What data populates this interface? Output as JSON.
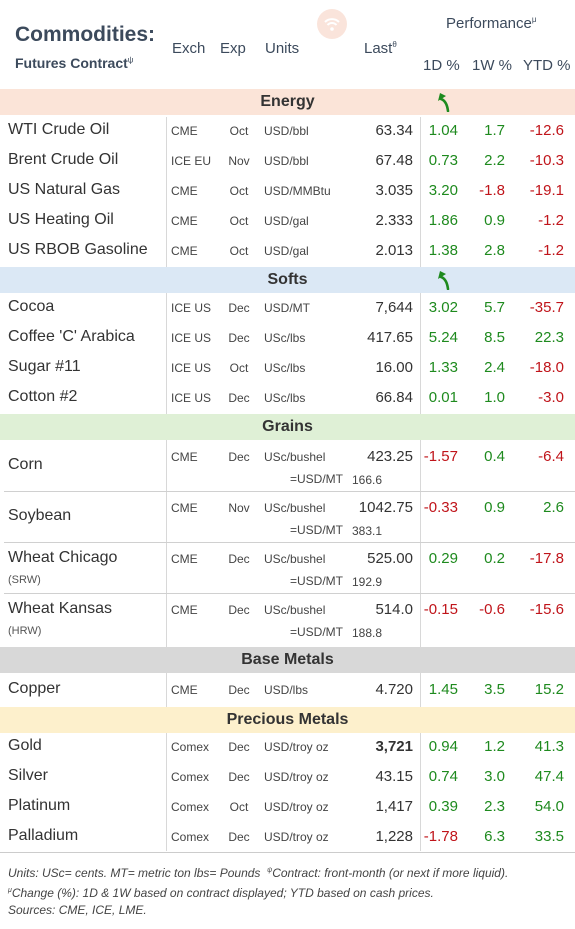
{
  "header": {
    "title": "Commodities:",
    "subtitle": "Futures Contract",
    "subtitle_mark": "ψ",
    "col_exch": "Exch",
    "col_exp": "Exp",
    "col_units": "Units",
    "col_last": "Last",
    "col_last_mark": "θ",
    "performance": "Performance",
    "performance_mark": "μ",
    "col_1d": "1D %",
    "col_1w": "1W %",
    "col_ytd": "YTD %"
  },
  "sections": {
    "energy": "Energy",
    "softs": "Softs",
    "grains": "Grains",
    "base_metals": "Base Metals",
    "precious_metals": "Precious Metals"
  },
  "energy": [
    {
      "name": "WTI Crude Oil",
      "exch": "CME",
      "exp": "Oct",
      "units": "USD/bbl",
      "last": "63.34",
      "d1": "1.04",
      "w1": "1.7",
      "ytd": "-12.6"
    },
    {
      "name": "Brent Crude Oil",
      "exch": "ICE EU",
      "exp": "Nov",
      "units": "USD/bbl",
      "last": "67.48",
      "d1": "0.73",
      "w1": "2.2",
      "ytd": "-10.3"
    },
    {
      "name": "US Natural Gas",
      "exch": "CME",
      "exp": "Oct",
      "units": "USD/MMBtu",
      "last": "3.035",
      "d1": "3.20",
      "w1": "-1.8",
      "ytd": "-19.1"
    },
    {
      "name": "US Heating Oil",
      "exch": "CME",
      "exp": "Oct",
      "units": "USD/gal",
      "last": "2.333",
      "d1": "1.86",
      "w1": "0.9",
      "ytd": "-1.2"
    },
    {
      "name": "US RBOB Gasoline",
      "exch": "CME",
      "exp": "Oct",
      "units": "USD/gal",
      "last": "2.013",
      "d1": "1.38",
      "w1": "2.8",
      "ytd": "-1.2"
    }
  ],
  "softs": [
    {
      "name": "Cocoa",
      "exch": "ICE US",
      "exp": "Dec",
      "units": "USD/MT",
      "last": "7,644",
      "d1": "3.02",
      "w1": "5.7",
      "ytd": "-35.7"
    },
    {
      "name": "Coffee 'C' Arabica",
      "exch": "ICE US",
      "exp": "Dec",
      "units": "USc/lbs",
      "last": "417.65",
      "d1": "5.24",
      "w1": "8.5",
      "ytd": "22.3"
    },
    {
      "name": "Sugar #11",
      "exch": "ICE US",
      "exp": "Oct",
      "units": "USc/lbs",
      "last": "16.00",
      "d1": "1.33",
      "w1": "2.4",
      "ytd": "-18.0"
    },
    {
      "name": "Cotton #2",
      "exch": "ICE US",
      "exp": "Dec",
      "units": "USc/lbs",
      "last": "66.84",
      "d1": "0.01",
      "w1": "1.0",
      "ytd": "-3.0"
    }
  ],
  "grains": [
    {
      "name": "Corn",
      "sub": "",
      "exch": "CME",
      "exp": "Dec",
      "units": "USc/bushel",
      "last": "423.25",
      "usdmt_label": "=USD/MT",
      "usdmt": "166.6",
      "d1": "-1.57",
      "w1": "0.4",
      "ytd": "-6.4"
    },
    {
      "name": "Soybean",
      "sub": "",
      "exch": "CME",
      "exp": "Nov",
      "units": "USc/bushel",
      "last": "1042.75",
      "usdmt_label": "=USD/MT",
      "usdmt": "383.1",
      "d1": "-0.33",
      "w1": "0.9",
      "ytd": "2.6"
    },
    {
      "name": "Wheat Chicago",
      "sub": "(SRW)",
      "exch": "CME",
      "exp": "Dec",
      "units": "USc/bushel",
      "last": "525.00",
      "usdmt_label": "=USD/MT",
      "usdmt": "192.9",
      "d1": "0.29",
      "w1": "0.2",
      "ytd": "-17.8"
    },
    {
      "name": "Wheat Kansas",
      "sub": "(HRW)",
      "exch": "CME",
      "exp": "Dec",
      "units": "USc/bushel",
      "last": "514.0",
      "usdmt_label": "=USD/MT",
      "usdmt": "188.8",
      "d1": "-0.15",
      "w1": "-0.6",
      "ytd": "-15.6"
    }
  ],
  "base_metals": [
    {
      "name": "Copper",
      "exch": "CME",
      "exp": "Dec",
      "units": "USD/lbs",
      "last": "4.720",
      "d1": "1.45",
      "w1": "3.5",
      "ytd": "15.2"
    }
  ],
  "precious_metals": [
    {
      "name": "Gold",
      "exch": "Comex",
      "exp": "Dec",
      "units": "USD/troy oz",
      "last": "3,721",
      "d1": "0.94",
      "w1": "1.2",
      "ytd": "41.3",
      "last_bold": true
    },
    {
      "name": "Silver",
      "exch": "Comex",
      "exp": "Dec",
      "units": "USD/troy oz",
      "last": "43.15",
      "d1": "0.74",
      "w1": "3.0",
      "ytd": "47.4"
    },
    {
      "name": "Platinum",
      "exch": "Comex",
      "exp": "Oct",
      "units": "USD/troy oz",
      "last": "1,417",
      "d1": "0.39",
      "w1": "2.3",
      "ytd": "54.0"
    },
    {
      "name": "Palladium",
      "exch": "Comex",
      "exp": "Dec",
      "units": "USD/troy oz",
      "last": "1,228",
      "d1": "-1.78",
      "w1": "6.3",
      "ytd": "33.5"
    }
  ],
  "footnotes": {
    "line1": "Units: USc= cents.   MT= metric ton    lbs= Pounds",
    "line1_mark": "ψ",
    "line1_tail": "Contract: front-month (or next if more liquid).",
    "line2_mark": "μ",
    "line2": "Change (%): 1D & 1W based on contract displayed; YTD based on cash prices.",
    "line3": "Sources: CME, ICE, LME."
  },
  "colors": {
    "positive": "#1e8a1e",
    "negative": "#c0141a",
    "energy_band": "#fbe4d8",
    "softs_band": "#dbe8f5",
    "grains_band": "#dff0d6",
    "base_band": "#d8d8d8",
    "precious_band": "#fdf0cc"
  },
  "icons": {
    "logo": "wifi-logo-icon",
    "trend": "green-up-arrow-icon"
  }
}
